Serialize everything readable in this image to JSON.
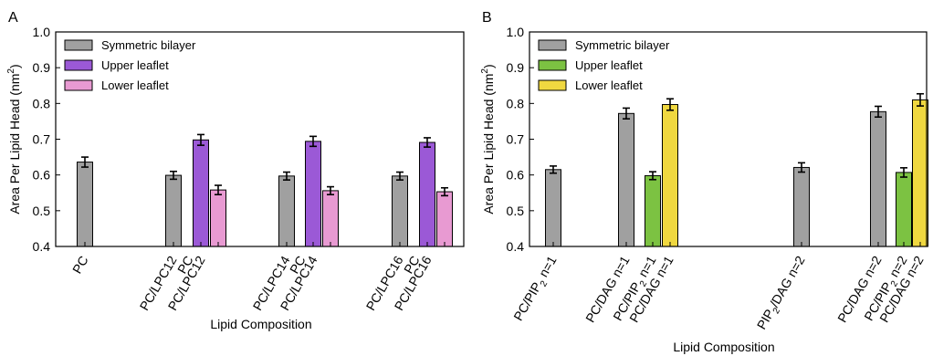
{
  "colors": {
    "symmetric": "#a0a0a0",
    "upper_purple": "#9b59d6",
    "lower_pink": "#e89ad2",
    "upper_green": "#7cc242",
    "lower_yellow": "#f0d840"
  },
  "chart_data": [
    {
      "panel_label": "A",
      "type": "bar",
      "xlabel": "Lipid Composition",
      "ylabel": "Area Per Lipid Head (nm",
      "ylabel_sup": "2",
      "ylabel_end": ")",
      "ylim": [
        0.4,
        1.0
      ],
      "yticks": [
        "0.4",
        "0.5",
        "0.6",
        "0.7",
        "0.8",
        "0.9",
        "1.0"
      ],
      "legend": [
        {
          "label": "Symmetric bilayer",
          "color": "#a0a0a0"
        },
        {
          "label": "Upper leaflet",
          "color": "#9b59d6"
        },
        {
          "label": "Lower leaflet",
          "color": "#e89ad2"
        }
      ],
      "bars": [
        {
          "label": "PC",
          "series": "Symmetric bilayer",
          "value": 0.636,
          "err": 0.014
        },
        {
          "label": "PC/LPC12",
          "series": "Symmetric bilayer",
          "value": 0.599,
          "err": 0.011
        },
        {
          "label": "PC",
          "label2": "PC/LPC12",
          "series": "Upper leaflet",
          "value": 0.698,
          "err": 0.015
        },
        {
          "label": "",
          "series": "Lower leaflet",
          "value": 0.558,
          "err": 0.013
        },
        {
          "label": "PC/LPC14",
          "series": "Symmetric bilayer",
          "value": 0.597,
          "err": 0.011
        },
        {
          "label": "PC",
          "label2": "PC/LPC14",
          "series": "Upper leaflet",
          "value": 0.694,
          "err": 0.014
        },
        {
          "label": "",
          "series": "Lower leaflet",
          "value": 0.556,
          "err": 0.011
        },
        {
          "label": "PC/LPC16",
          "series": "Symmetric bilayer",
          "value": 0.597,
          "err": 0.011
        },
        {
          "label": "PC",
          "label2": "PC/LPC16",
          "series": "Upper leaflet",
          "value": 0.691,
          "err": 0.013
        },
        {
          "label": "",
          "series": "Lower leaflet",
          "value": 0.553,
          "err": 0.011
        }
      ]
    },
    {
      "panel_label": "B",
      "type": "bar",
      "xlabel": "Lipid Composition",
      "ylabel": "Area Per Lipid Head (nm",
      "ylabel_sup": "2",
      "ylabel_end": ")",
      "ylim": [
        0.4,
        1.0
      ],
      "yticks": [
        "0.4",
        "0.5",
        "0.6",
        "0.7",
        "0.8",
        "0.9",
        "1.0"
      ],
      "legend": [
        {
          "label": "Symmetric bilayer",
          "color": "#a0a0a0"
        },
        {
          "label": "Upper leaflet",
          "color": "#7cc242"
        },
        {
          "label": "Lower leaflet",
          "color": "#f0d840"
        }
      ],
      "bars": [
        {
          "label": "PC/PIP",
          "label_sub": "2",
          "label_end": " n=1",
          "series": "Symmetric bilayer",
          "value": 0.615,
          "err": 0.01
        },
        {
          "label": "PC/DAG n=1",
          "series": "Symmetric bilayer",
          "value": 0.772,
          "err": 0.015
        },
        {
          "label": "PC/PIP",
          "label_sub": "2",
          "label_end": " n=1",
          "series": "Upper leaflet",
          "value": 0.598,
          "err": 0.011
        },
        {
          "label": "PC/DAG n=1",
          "series": "Lower leaflet",
          "value": 0.797,
          "err": 0.016
        },
        {
          "label": "PIP",
          "label_sub": "2",
          "label_end": "/DAG n=2",
          "series": "Symmetric bilayer",
          "value": 0.621,
          "err": 0.013
        },
        {
          "label": "PC/DAG n=2",
          "series": "Symmetric bilayer",
          "value": 0.777,
          "err": 0.015
        },
        {
          "label": "PC/PIP",
          "label_sub": "2",
          "label_end": " n=2",
          "series": "Upper leaflet",
          "value": 0.607,
          "err": 0.013
        },
        {
          "label": "PC/DAG n=2",
          "series": "Lower leaflet",
          "value": 0.81,
          "err": 0.017
        }
      ]
    }
  ]
}
